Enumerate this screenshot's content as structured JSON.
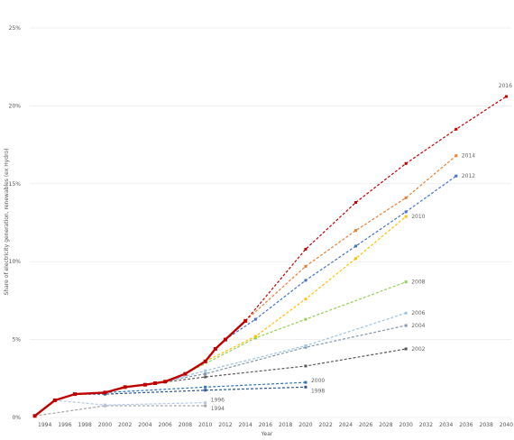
{
  "chart_data": {
    "type": "line",
    "title": "",
    "xlabel": "Year",
    "ylabel": "Share of electricity generation, renewables (ex Hydro)",
    "xlim": [
      1992.5,
      2040.5
    ],
    "ylim": [
      0,
      25
    ],
    "xticks": [
      1994,
      1996,
      1998,
      2000,
      2002,
      2004,
      2006,
      2008,
      2010,
      2012,
      2014,
      2016,
      2018,
      2020,
      2022,
      2024,
      2026,
      2028,
      2030,
      2032,
      2034,
      2036,
      2038,
      2040
    ],
    "yticks": [
      0,
      5,
      10,
      15,
      20,
      25
    ],
    "ytick_labels": [
      "0%",
      "5%",
      "10%",
      "15%",
      "20%",
      "25%"
    ],
    "grid": true,
    "historical": {
      "color": "#c00000",
      "x": [
        1993,
        1995,
        1997,
        2000,
        2002,
        2004,
        2005,
        2006,
        2008,
        2010,
        2011,
        2012,
        2014
      ],
      "y": [
        0.1,
        1.1,
        1.5,
        1.6,
        1.95,
        2.1,
        2.2,
        2.3,
        2.8,
        3.6,
        4.4,
        5.0,
        6.2
      ]
    },
    "series": [
      {
        "name": "1994",
        "color": "#a6a6a6",
        "x": [
          1993,
          2000,
          2010
        ],
        "y": [
          0.1,
          0.75,
          0.75
        ]
      },
      {
        "name": "1996",
        "color": "#b4c7e7",
        "x": [
          1995,
          2000,
          2010
        ],
        "y": [
          1.1,
          0.8,
          0.95
        ]
      },
      {
        "name": "1998",
        "color": "#2f5597",
        "x": [
          1997,
          2000,
          2010,
          2020
        ],
        "y": [
          1.5,
          1.5,
          1.75,
          1.95
        ]
      },
      {
        "name": "2000",
        "color": "#2e75b6",
        "x": [
          2000,
          2010,
          2020
        ],
        "y": [
          1.6,
          1.95,
          2.25
        ]
      },
      {
        "name": "2002",
        "color": "#595959",
        "x": [
          2002,
          2010,
          2020,
          2030
        ],
        "y": [
          1.95,
          2.6,
          3.3,
          4.4
        ]
      },
      {
        "name": "2004",
        "color": "#8497b0",
        "x": [
          2004,
          2010,
          2020,
          2030
        ],
        "y": [
          2.1,
          2.8,
          4.5,
          5.9
        ]
      },
      {
        "name": "2006",
        "color": "#9dc3e6",
        "x": [
          2006,
          2010,
          2020,
          2030
        ],
        "y": [
          2.3,
          3.0,
          4.6,
          6.7
        ]
      },
      {
        "name": "2008",
        "color": "#92d050",
        "x": [
          2008,
          2015,
          2020,
          2030
        ],
        "y": [
          2.8,
          5.1,
          6.3,
          8.7
        ]
      },
      {
        "name": "2010",
        "color": "#ffc000",
        "x": [
          2010,
          2015,
          2020,
          2025,
          2030
        ],
        "y": [
          3.6,
          5.2,
          7.6,
          10.2,
          12.9
        ]
      },
      {
        "name": "2012",
        "color": "#4472c4",
        "x": [
          2012,
          2015,
          2020,
          2025,
          2030,
          2035
        ],
        "y": [
          5.0,
          6.3,
          8.8,
          11.0,
          13.2,
          15.5
        ]
      },
      {
        "name": "2014",
        "color": "#ed7d31",
        "x": [
          2014,
          2020,
          2025,
          2030,
          2035
        ],
        "y": [
          6.2,
          9.7,
          12.0,
          14.1,
          16.8
        ]
      },
      {
        "name": "2016",
        "color": "#c00000",
        "x": [
          2014,
          2020,
          2025,
          2030,
          2035,
          2040
        ],
        "y": [
          6.2,
          10.8,
          13.8,
          16.3,
          18.5,
          20.6
        ]
      }
    ]
  }
}
